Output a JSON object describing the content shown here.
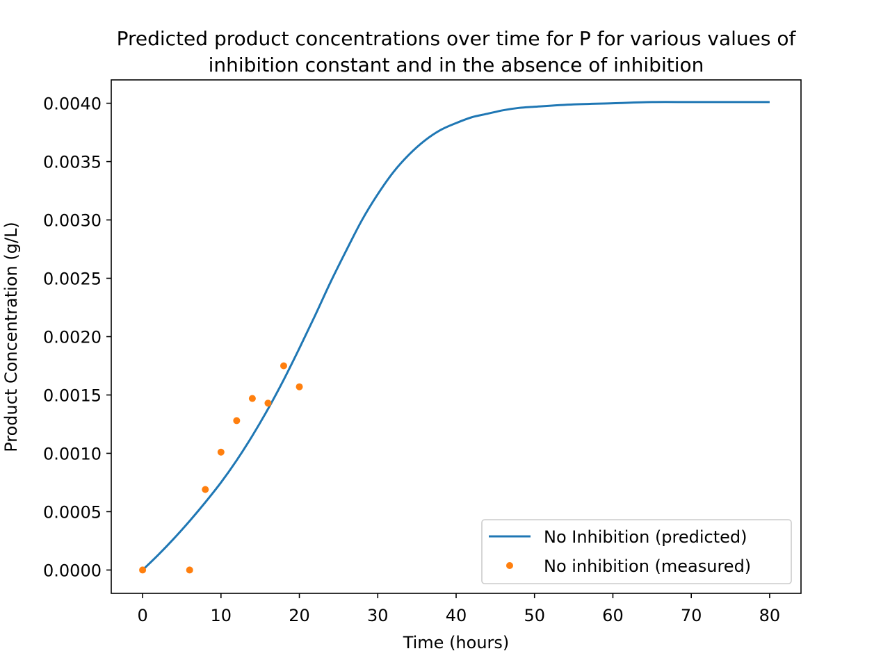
{
  "chart_data": {
    "type": "line",
    "title_lines": [
      "Predicted product concentrations over time for P for various values of",
      "inhibition constant and in the absence of inhibition"
    ],
    "xlabel": "Time (hours)",
    "ylabel": "Product Concentration (g/L)",
    "xlim": [
      -4,
      84
    ],
    "ylim": [
      -0.0002,
      0.0042
    ],
    "x_ticks": [
      0,
      10,
      20,
      30,
      40,
      50,
      60,
      70,
      80
    ],
    "x_tick_labels": [
      "0",
      "10",
      "20",
      "30",
      "40",
      "50",
      "60",
      "70",
      "80"
    ],
    "y_ticks": [
      0.0,
      0.0005,
      0.001,
      0.0015,
      0.002,
      0.0025,
      0.003,
      0.0035,
      0.004
    ],
    "y_tick_labels": [
      "0.0000",
      "0.0005",
      "0.0010",
      "0.0015",
      "0.0020",
      "0.0025",
      "0.0030",
      "0.0035",
      "0.0040"
    ],
    "grid": false,
    "legend_position": "lower-right",
    "series": [
      {
        "name": "No Inhibition (predicted)",
        "kind": "line",
        "color": "#1f77b4",
        "x": [
          0,
          2,
          4,
          6,
          8,
          10,
          12,
          14,
          16,
          18,
          20,
          22,
          24,
          26,
          28,
          30,
          32,
          34,
          36,
          38,
          40,
          42,
          44,
          46,
          48,
          50,
          55,
          60,
          65,
          70,
          75,
          80
        ],
        "y": [
          0.0,
          0.00013,
          0.00027,
          0.00042,
          0.00058,
          0.00075,
          0.00094,
          0.00115,
          0.00138,
          0.00163,
          0.0019,
          0.00218,
          0.00247,
          0.00274,
          0.003,
          0.00322,
          0.00341,
          0.00356,
          0.00368,
          0.00377,
          0.00383,
          0.00388,
          0.00391,
          0.00394,
          0.00396,
          0.00397,
          0.00399,
          0.004,
          0.00401,
          0.00401,
          0.00401,
          0.00401
        ]
      },
      {
        "name": "No inhibition (measured)",
        "kind": "scatter",
        "color": "#ff7f0e",
        "x": [
          0,
          6,
          8,
          10,
          12,
          14,
          16,
          18,
          20
        ],
        "y": [
          0.0,
          0.0,
          0.00069,
          0.00101,
          0.00128,
          0.00147,
          0.00143,
          0.00175,
          0.00157
        ]
      }
    ]
  }
}
